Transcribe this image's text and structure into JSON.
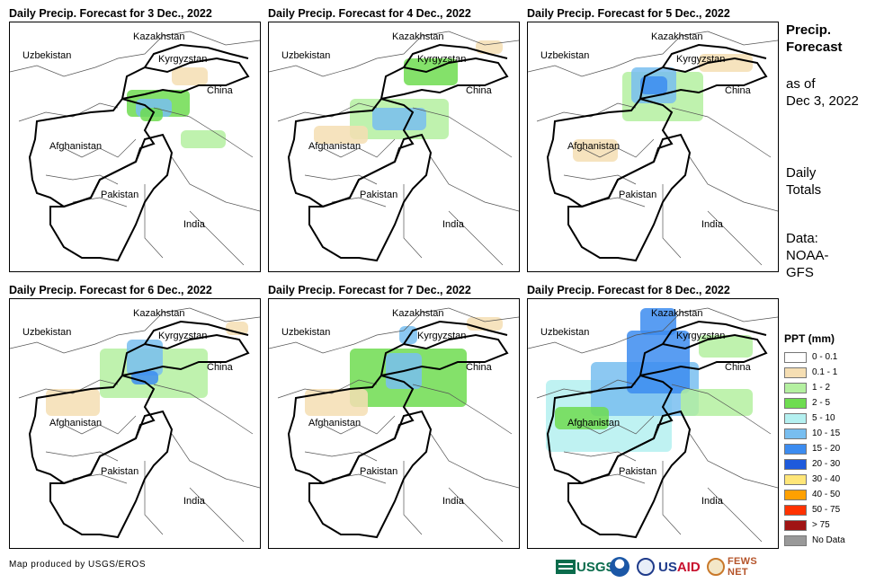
{
  "panels": [
    {
      "title": "Daily Precip. Forecast for 3 Dec., 2022"
    },
    {
      "title": "Daily Precip. Forecast for 4 Dec., 2022"
    },
    {
      "title": "Daily Precip. Forecast for 5 Dec., 2022"
    },
    {
      "title": "Daily Precip. Forecast for 6 Dec., 2022"
    },
    {
      "title": "Daily Precip. Forecast for 7 Dec., 2022"
    },
    {
      "title": "Daily Precip. Forecast for 8 Dec., 2022"
    }
  ],
  "map_labels": {
    "kazakhstan": "Kazakhstan",
    "uzbekistan": "Uzbekistan",
    "kyrgyzstan": "Kyrgyzstan",
    "china": "China",
    "afghanistan": "Afghanistan",
    "pakistan": "Pakistan",
    "india": "India"
  },
  "side_info": {
    "title_line1": "Precip.",
    "title_line2": "Forecast",
    "asof_line1": "as of",
    "asof_line2": "Dec 3, 2022",
    "totals_line1": "Daily",
    "totals_line2": "Totals",
    "data_line1": "Data:",
    "data_line2": "NOAA-",
    "data_line3": "GFS"
  },
  "legend": {
    "title": "PPT (mm)",
    "items": [
      {
        "label": "0 - 0.1",
        "color": "#ffffff"
      },
      {
        "label": "0.1 - 1",
        "color": "#f5deb3"
      },
      {
        "label": "1 - 2",
        "color": "#b4f0a0"
      },
      {
        "label": "2 - 5",
        "color": "#6edc50"
      },
      {
        "label": "5 - 10",
        "color": "#b4f0f0"
      },
      {
        "label": "10 - 15",
        "color": "#78bef0"
      },
      {
        "label": "15 - 20",
        "color": "#3c8cf0"
      },
      {
        "label": "20 - 30",
        "color": "#1e5adc"
      },
      {
        "label": "30 - 40",
        "color": "#ffe678"
      },
      {
        "label": "40 - 50",
        "color": "#ffa000"
      },
      {
        "label": "50 - 75",
        "color": "#ff3200"
      },
      {
        "label": "> 75",
        "color": "#a01414"
      },
      {
        "label": "No Data",
        "color": "#999999"
      }
    ]
  },
  "credit": "Map produced by USGS/EROS",
  "logos": {
    "usgs": "USGS",
    "usaid_prefix": "US",
    "usaid_suffix": "AID",
    "fews": "FEWS NET"
  }
}
